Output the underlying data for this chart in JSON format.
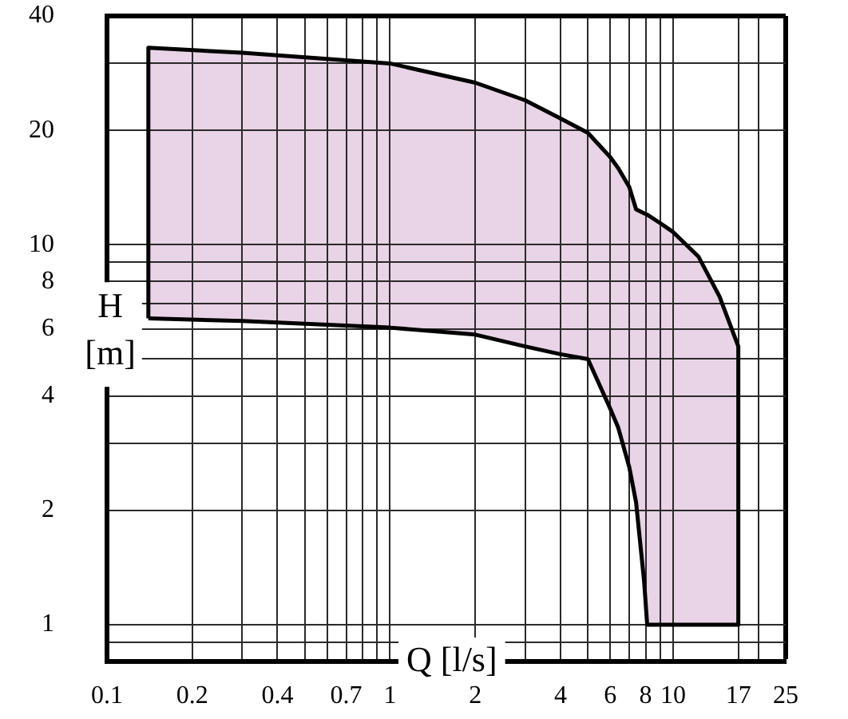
{
  "chart_data": {
    "type": "area",
    "xlabel": "Q [l/s]",
    "ylabel": "H [m]",
    "log": "xy",
    "grid": true,
    "xlim": [
      0.1,
      25
    ],
    "xticks": [
      0.1,
      0.2,
      {
        "value": 0.3,
        "label": null
      },
      0.4,
      {
        "value": 0.5,
        "label": null
      },
      {
        "value": 0.6,
        "label": null
      },
      0.7,
      {
        "value": 0.8,
        "label": null
      },
      {
        "value": 0.9,
        "label": null
      },
      1,
      2,
      {
        "value": 3,
        "label": null
      },
      4,
      {
        "value": 5,
        "label": null
      },
      6,
      {
        "value": 7,
        "label": null
      },
      8,
      {
        "value": 9,
        "label": null
      },
      10,
      17,
      {
        "value": 20,
        "label": null
      },
      25
    ],
    "ylim": [
      0.8,
      40
    ],
    "yticks": [
      {
        "value": 0.9,
        "label": null
      },
      1,
      2,
      {
        "value": 3,
        "label": null
      },
      4,
      {
        "value": 5,
        "label": null
      },
      6,
      {
        "value": 7,
        "label": null
      },
      8,
      {
        "value": 9,
        "label": null
      },
      10,
      20,
      {
        "value": 30,
        "label": null
      },
      40
    ],
    "series": [
      {
        "color": "#e9d3e6",
        "x": [
          0.14,
          0.14,
          0.3,
          1,
          2,
          3,
          4,
          5,
          6,
          6.4,
          7,
          7.4,
          7.9,
          8.1,
          9,
          10,
          12.3,
          14.6,
          17
        ],
        "values": [
          6.4,
          33,
          32,
          30,
          26.7,
          24,
          21.5,
          19.7,
          17,
          15.9,
          14.2,
          12.4,
          12.1,
          12,
          11.4,
          10.8,
          9.3,
          7.3,
          5.4
        ]
      },
      {
        "color": "#ffffff",
        "x": [
          17,
          17,
          14.6,
          12.3,
          10,
          9,
          8.1,
          7.9,
          7.4,
          7,
          6.4,
          6,
          5,
          4,
          3,
          2,
          1,
          0.3,
          0.14
        ],
        "values": [
          5.4,
          1,
          1,
          1,
          1,
          1,
          1,
          1.3,
          2.1,
          2.6,
          3.3,
          3.7,
          5,
          5.15,
          5.4,
          5.8,
          6.05,
          6.3,
          6.4
        ]
      }
    ]
  }
}
